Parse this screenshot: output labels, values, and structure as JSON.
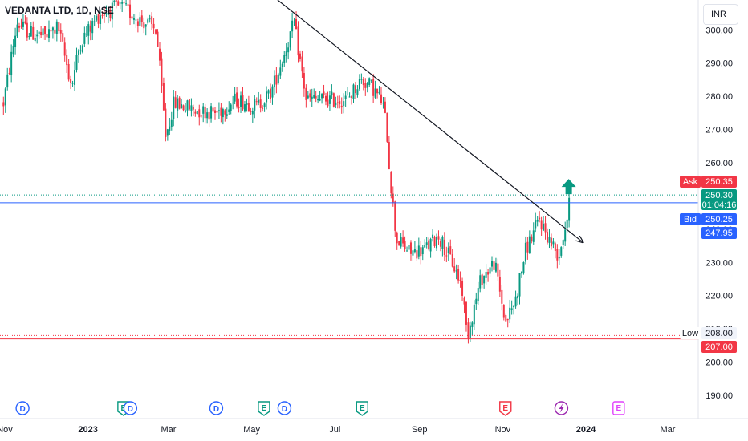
{
  "header": {
    "symbol": "VEDANTA LTD, 1D, NSE",
    "currency": "INR"
  },
  "chart_data": {
    "type": "candlestick",
    "title": "VEDANTA LTD, 1D, NSE",
    "currency": "INR",
    "ylim": [
      183,
      309
    ],
    "y_ticks": [
      "190.00",
      "200.00",
      "210.00",
      "220.00",
      "230.00",
      "240.00",
      "250.00",
      "260.00",
      "270.00",
      "280.00",
      "290.00",
      "300.00"
    ],
    "y_tick_values": [
      190,
      200,
      210,
      220,
      230,
      240,
      250,
      260,
      270,
      280,
      290,
      300
    ],
    "x_ticks": [
      {
        "label": "Nov",
        "date": "2022-11"
      },
      {
        "label": "2023",
        "date": "2023-01"
      },
      {
        "label": "Mar",
        "date": "2023-03"
      },
      {
        "label": "May",
        "date": "2023-05"
      },
      {
        "label": "Jul",
        "date": "2023-07"
      },
      {
        "label": "Sep",
        "date": "2023-09"
      },
      {
        "label": "Nov",
        "date": "2023-11"
      },
      {
        "label": "2024",
        "date": "2024-01"
      },
      {
        "label": "Mar",
        "date": "2024-03"
      }
    ],
    "price_path": [
      [
        "2022-10-31",
        278
      ],
      [
        "2022-11-10",
        302
      ],
      [
        "2022-11-20",
        299
      ],
      [
        "2022-12-01",
        298
      ],
      [
        "2022-12-10",
        301
      ],
      [
        "2022-12-20",
        283
      ],
      [
        "2022-12-26",
        296
      ],
      [
        "2023-01-10",
        305
      ],
      [
        "2023-01-25",
        307
      ],
      [
        "2023-02-05",
        304
      ],
      [
        "2023-02-20",
        300
      ],
      [
        "2023-02-27",
        268
      ],
      [
        "2023-03-05",
        278
      ],
      [
        "2023-03-20",
        276
      ],
      [
        "2023-04-05",
        275
      ],
      [
        "2023-04-20",
        279
      ],
      [
        "2023-05-05",
        277
      ],
      [
        "2023-05-15",
        281
      ],
      [
        "2023-05-25",
        293
      ],
      [
        "2023-06-01",
        302
      ],
      [
        "2023-06-10",
        279
      ],
      [
        "2023-06-25",
        279
      ],
      [
        "2023-07-10",
        279
      ],
      [
        "2023-07-20",
        285
      ],
      [
        "2023-07-28",
        283
      ],
      [
        "2023-08-05",
        278
      ],
      [
        "2023-08-08",
        270
      ],
      [
        "2023-08-10",
        258
      ],
      [
        "2023-08-15",
        237
      ],
      [
        "2023-08-25",
        233
      ],
      [
        "2023-09-05",
        234
      ],
      [
        "2023-09-15",
        238
      ],
      [
        "2023-09-25",
        230
      ],
      [
        "2023-10-02",
        223
      ],
      [
        "2023-10-06",
        208
      ],
      [
        "2023-10-16",
        225
      ],
      [
        "2023-10-26",
        230
      ],
      [
        "2023-11-03",
        212
      ],
      [
        "2023-11-10",
        218
      ],
      [
        "2023-11-18",
        234
      ],
      [
        "2023-11-28",
        243
      ],
      [
        "2023-12-05",
        237
      ],
      [
        "2023-12-12",
        232
      ],
      [
        "2023-12-18",
        243
      ],
      [
        "2023-12-21",
        250.3
      ]
    ],
    "trendline": {
      "from": [
        "2023-05-20",
        309
      ],
      "to": [
        "2023-12-30",
        236
      ]
    },
    "horizontal_lines": [
      {
        "name": "Bid",
        "value": 247.95,
        "color": "#2962ff"
      },
      {
        "name": "Low",
        "value": 207.0,
        "color": "#f23645"
      }
    ],
    "price_tags": [
      {
        "label": "Ask",
        "value": "250.35",
        "color": "#f23645"
      },
      {
        "label": "",
        "value": "250.30",
        "extra": "01:04:16",
        "color": "#089981"
      },
      {
        "label": "Bid",
        "value": "250.25",
        "color": "#2962ff"
      },
      {
        "label": "",
        "value": "247.95",
        "color": "#2962ff"
      },
      {
        "label": "Low",
        "value": "208.00",
        "color": "#f0f3fa",
        "text_color": "#131722"
      },
      {
        "label": "",
        "value": "207.00",
        "color": "#f23645"
      }
    ],
    "events": [
      {
        "type": "D",
        "date": "2022-11-14"
      },
      {
        "type": "E",
        "date": "2023-01-27"
      },
      {
        "type": "D",
        "date": "2023-02-01"
      },
      {
        "type": "D",
        "date": "2023-04-05"
      },
      {
        "type": "E",
        "date": "2023-05-10"
      },
      {
        "type": "D",
        "date": "2023-05-25"
      },
      {
        "type": "E",
        "date": "2023-07-21"
      },
      {
        "type": "E",
        "date": "2023-11-03"
      },
      {
        "type": "lightning",
        "date": "2023-12-14"
      },
      {
        "type": "E",
        "date": "2024-01-25"
      }
    ],
    "signal_arrow": {
      "direction": "up",
      "date": "2023-12-30",
      "price": 252
    },
    "colors": {
      "up": "#089981",
      "down": "#f23645",
      "trend": "#131722"
    }
  }
}
